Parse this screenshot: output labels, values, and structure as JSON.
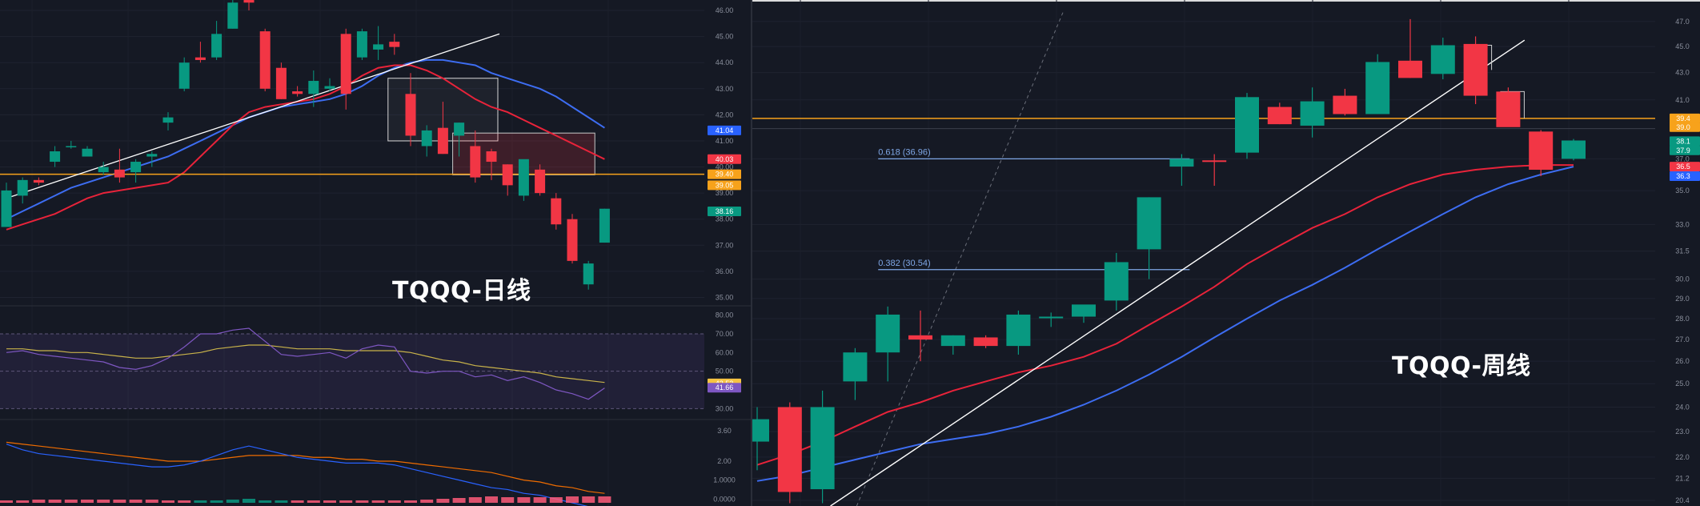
{
  "chart_data": [
    {
      "id": "daily",
      "type": "candlestick",
      "title": "TQQQ-日线",
      "y_ticks": [
        "46.00",
        "45.00",
        "44.00",
        "43.00",
        "42.00",
        "41.00",
        "40.00",
        "39.00",
        "38.00",
        "37.00",
        "36.00",
        "35.00"
      ],
      "ylim": [
        34.8,
        46.4
      ],
      "candles": [
        {
          "o": 37.7,
          "h": 39.4,
          "l": 37.7,
          "c": 39.1
        },
        {
          "o": 38.9,
          "h": 39.6,
          "l": 38.6,
          "c": 39.5
        },
        {
          "o": 39.5,
          "h": 39.6,
          "l": 39.3,
          "c": 39.4
        },
        {
          "o": 40.2,
          "h": 40.8,
          "l": 40.0,
          "c": 40.6
        },
        {
          "o": 40.8,
          "h": 41.0,
          "l": 40.7,
          "c": 40.8
        },
        {
          "o": 40.4,
          "h": 40.8,
          "l": 40.4,
          "c": 40.7
        },
        {
          "o": 39.8,
          "h": 40.2,
          "l": 39.7,
          "c": 40.0
        },
        {
          "o": 39.9,
          "h": 40.7,
          "l": 39.4,
          "c": 39.6
        },
        {
          "o": 39.8,
          "h": 40.3,
          "l": 39.4,
          "c": 40.2
        },
        {
          "o": 40.4,
          "h": 40.6,
          "l": 40.0,
          "c": 40.5
        },
        {
          "o": 41.7,
          "h": 42.1,
          "l": 41.4,
          "c": 41.9
        },
        {
          "o": 43.0,
          "h": 44.2,
          "l": 42.9,
          "c": 44.0
        },
        {
          "o": 44.2,
          "h": 44.8,
          "l": 44.0,
          "c": 44.1
        },
        {
          "o": 44.2,
          "h": 45.6,
          "l": 44.1,
          "c": 45.1
        },
        {
          "o": 45.3,
          "h": 46.4,
          "l": 45.3,
          "c": 46.3
        },
        {
          "o": 46.5,
          "h": 46.6,
          "l": 46.0,
          "c": 46.3
        },
        {
          "o": 45.2,
          "h": 45.3,
          "l": 42.9,
          "c": 43.0
        },
        {
          "o": 43.8,
          "h": 44.0,
          "l": 42.6,
          "c": 42.6
        },
        {
          "o": 42.9,
          "h": 43.1,
          "l": 42.7,
          "c": 42.8
        },
        {
          "o": 42.8,
          "h": 43.7,
          "l": 42.3,
          "c": 43.3
        },
        {
          "o": 43.0,
          "h": 43.4,
          "l": 42.9,
          "c": 43.1
        },
        {
          "o": 45.1,
          "h": 45.3,
          "l": 42.2,
          "c": 42.8
        },
        {
          "o": 44.2,
          "h": 45.3,
          "l": 44.1,
          "c": 45.2
        },
        {
          "o": 44.5,
          "h": 45.4,
          "l": 44.1,
          "c": 44.7
        },
        {
          "o": 44.8,
          "h": 45.1,
          "l": 44.3,
          "c": 44.6
        },
        {
          "o": 42.8,
          "h": 43.6,
          "l": 40.8,
          "c": 41.2
        },
        {
          "o": 40.8,
          "h": 41.6,
          "l": 40.4,
          "c": 41.4
        },
        {
          "o": 41.5,
          "h": 42.5,
          "l": 40.5,
          "c": 40.5
        },
        {
          "o": 41.2,
          "h": 41.7,
          "l": 40.4,
          "c": 41.7
        },
        {
          "o": 40.8,
          "h": 41.4,
          "l": 39.4,
          "c": 39.6
        },
        {
          "o": 40.6,
          "h": 40.7,
          "l": 39.5,
          "c": 40.2
        },
        {
          "o": 40.1,
          "h": 40.1,
          "l": 38.9,
          "c": 39.3
        },
        {
          "o": 38.9,
          "h": 40.2,
          "l": 38.7,
          "c": 40.3
        },
        {
          "o": 39.9,
          "h": 40.1,
          "l": 38.9,
          "c": 39.0
        },
        {
          "o": 38.8,
          "h": 39.0,
          "l": 37.6,
          "c": 37.8
        },
        {
          "o": 38.0,
          "h": 38.2,
          "l": 36.3,
          "c": 36.4
        },
        {
          "o": 35.5,
          "h": 36.4,
          "l": 35.3,
          "c": 36.3
        },
        {
          "o": 37.1,
          "h": 38.4,
          "l": 37.1,
          "c": 38.4
        }
      ],
      "ma_blue": [
        38.0,
        38.3,
        38.6,
        38.9,
        39.2,
        39.4,
        39.6,
        39.8,
        40.0,
        40.2,
        40.4,
        40.7,
        41.0,
        41.3,
        41.6,
        41.9,
        42.1,
        42.3,
        42.4,
        42.5,
        42.6,
        42.8,
        43.1,
        43.5,
        43.8,
        44.0,
        44.1,
        44.1,
        44.0,
        43.9,
        43.6,
        43.4,
        43.2,
        43.0,
        42.7,
        42.3,
        41.9,
        41.5
      ],
      "ma_red": [
        37.6,
        37.8,
        38.0,
        38.2,
        38.5,
        38.8,
        39.0,
        39.1,
        39.2,
        39.3,
        39.4,
        39.8,
        40.4,
        41.0,
        41.6,
        42.1,
        42.3,
        42.4,
        42.5,
        42.6,
        42.8,
        43.1,
        43.5,
        43.8,
        43.9,
        43.9,
        43.7,
        43.4,
        43.0,
        42.6,
        42.3,
        42.1,
        41.8,
        41.5,
        41.2,
        40.9,
        40.6,
        40.3
      ],
      "trendline": [
        [
          0,
          38.8
        ],
        [
          30,
          45.1
        ]
      ],
      "rect1": {
        "c0": 24,
        "c1": 30,
        "top": 43.4,
        "bottom": 41.0
      },
      "rect2": {
        "c0": 28,
        "c1": 36,
        "top": 41.3,
        "bottom": 39.7
      },
      "hline": 39.72,
      "price_tags": [
        {
          "value": 41.4,
          "label": "41.04",
          "color": "#2962ff"
        },
        {
          "value": 40.3,
          "label": "40.03",
          "color": "#f23645"
        },
        {
          "value": 39.72,
          "label": "39.40",
          "color": "#f7a21b"
        },
        {
          "value": 39.3,
          "label": "39.05",
          "color": "#f7a21b"
        },
        {
          "value": 38.3,
          "label": "38.16",
          "color": "#089981"
        }
      ],
      "rsi_ticks": [
        "80.00",
        "70.00",
        "60.00",
        "50.00",
        "40.00",
        "30.00"
      ],
      "rsi_tags": [
        {
          "label": "42.53",
          "color": "#f6c343"
        },
        {
          "label": "41.66",
          "color": "#7e57c2"
        }
      ],
      "rsi_main": [
        60,
        61,
        59,
        58,
        57,
        56,
        55,
        52,
        51,
        53,
        57,
        63,
        70,
        70,
        72,
        73,
        66,
        59,
        58,
        59,
        60,
        57,
        62,
        64,
        63,
        50,
        49,
        50,
        50,
        47,
        48,
        45,
        47,
        44,
        40,
        38,
        35,
        41
      ],
      "rsi_signal": [
        62,
        62,
        61,
        61,
        60,
        60,
        59,
        58,
        57,
        57,
        58,
        59,
        60,
        62,
        63,
        64,
        64,
        63,
        62,
        62,
        62,
        61,
        61,
        61,
        61,
        60,
        58,
        56,
        55,
        53,
        52,
        51,
        50,
        49,
        47,
        46,
        45,
        44
      ],
      "macd_ticks": [
        "3.60",
        "2.00",
        "1.0000",
        "0.0000"
      ],
      "macd_line": [
        2.9,
        2.6,
        2.4,
        2.3,
        2.2,
        2.1,
        2.0,
        1.9,
        1.8,
        1.7,
        1.7,
        1.8,
        2.0,
        2.3,
        2.6,
        2.8,
        2.6,
        2.4,
        2.2,
        2.1,
        2.0,
        1.9,
        1.9,
        1.9,
        1.8,
        1.6,
        1.4,
        1.2,
        1.0,
        0.8,
        0.6,
        0.5,
        0.3,
        0.2,
        0.0,
        -0.2,
        -0.4,
        -0.5
      ],
      "macd_signal": [
        3.0,
        2.9,
        2.8,
        2.7,
        2.6,
        2.5,
        2.4,
        2.3,
        2.2,
        2.1,
        2.0,
        2.0,
        2.0,
        2.1,
        2.2,
        2.3,
        2.3,
        2.3,
        2.3,
        2.2,
        2.2,
        2.1,
        2.1,
        2.0,
        2.0,
        1.9,
        1.8,
        1.7,
        1.6,
        1.5,
        1.4,
        1.2,
        1.0,
        0.9,
        0.7,
        0.6,
        0.4,
        0.3
      ]
    },
    {
      "id": "weekly",
      "type": "candlestick",
      "title": "TQQQ-周线",
      "scale": "log",
      "y_ticks": [
        "47.0",
        "45.0",
        "43.0",
        "41.0",
        "39.0",
        "37.0",
        "35.0",
        "33.0",
        "31.5",
        "30.0",
        "29.0",
        "28.0",
        "27.0",
        "26.0",
        "25.0",
        "24.0",
        "23.0",
        "22.0",
        "21.2",
        "20.4"
      ],
      "ylim": [
        20.2,
        48.8
      ],
      "candles": [
        {
          "o": 22.6,
          "h": 24.0,
          "l": 21.5,
          "c": 23.5
        },
        {
          "o": 24.0,
          "h": 24.2,
          "l": 20.3,
          "c": 20.7
        },
        {
          "o": 20.8,
          "h": 24.7,
          "l": 20.3,
          "c": 24.0
        },
        {
          "o": 25.1,
          "h": 26.6,
          "l": 24.3,
          "c": 26.4
        },
        {
          "o": 26.4,
          "h": 28.6,
          "l": 25.1,
          "c": 28.2
        },
        {
          "o": 27.2,
          "h": 28.4,
          "l": 26.0,
          "c": 27.0
        },
        {
          "o": 26.7,
          "h": 27.2,
          "l": 26.3,
          "c": 27.2
        },
        {
          "o": 27.1,
          "h": 27.2,
          "l": 26.6,
          "c": 26.7
        },
        {
          "o": 26.7,
          "h": 28.4,
          "l": 26.3,
          "c": 28.2
        },
        {
          "o": 28.1,
          "h": 28.3,
          "l": 27.6,
          "c": 28.1
        },
        {
          "o": 28.1,
          "h": 28.6,
          "l": 27.8,
          "c": 28.7
        },
        {
          "o": 28.9,
          "h": 31.4,
          "l": 28.4,
          "c": 30.9
        },
        {
          "o": 31.6,
          "h": 34.6,
          "l": 30.0,
          "c": 34.6
        },
        {
          "o": 36.5,
          "h": 37.3,
          "l": 35.3,
          "c": 37.0
        },
        {
          "o": 36.9,
          "h": 37.3,
          "l": 35.3,
          "c": 36.8
        },
        {
          "o": 37.4,
          "h": 41.5,
          "l": 37.0,
          "c": 41.2
        },
        {
          "o": 40.5,
          "h": 40.8,
          "l": 39.3,
          "c": 39.3
        },
        {
          "o": 39.2,
          "h": 41.9,
          "l": 38.4,
          "c": 40.9
        },
        {
          "o": 41.3,
          "h": 41.8,
          "l": 39.9,
          "c": 40.0
        },
        {
          "o": 40.0,
          "h": 44.4,
          "l": 40.0,
          "c": 43.8
        },
        {
          "o": 43.9,
          "h": 47.2,
          "l": 42.6,
          "c": 42.6
        },
        {
          "o": 42.9,
          "h": 45.7,
          "l": 42.5,
          "c": 45.1
        },
        {
          "o": 45.2,
          "h": 45.8,
          "l": 40.7,
          "c": 41.3
        },
        {
          "o": 41.6,
          "h": 41.9,
          "l": 39.2,
          "c": 39.1
        },
        {
          "o": 38.8,
          "h": 38.9,
          "l": 35.9,
          "c": 36.3
        },
        {
          "o": 37.0,
          "h": 38.3,
          "l": 36.9,
          "c": 38.2
        }
      ],
      "ma_blue": [
        21.1,
        21.3,
        21.6,
        21.9,
        22.2,
        22.5,
        22.7,
        22.9,
        23.2,
        23.6,
        24.1,
        24.7,
        25.4,
        26.2,
        27.1,
        28.0,
        28.9,
        29.7,
        30.6,
        31.6,
        32.6,
        33.6,
        34.6,
        35.4,
        36.0,
        36.5
      ],
      "ma_red": [
        21.7,
        22.1,
        22.6,
        23.2,
        23.8,
        24.2,
        24.7,
        25.1,
        25.6,
        25.9,
        26.3,
        26.9,
        27.8,
        28.7,
        29.7,
        30.9,
        31.9,
        33.0,
        33.9,
        35.1,
        36.4,
        37.7,
        38.9,
        40.2,
        40.7,
        41.3
      ],
      "ma_red_fix": [
        21.7,
        22.1,
        22.6,
        23.2,
        23.8,
        24.2,
        24.7,
        25.1,
        25.5,
        25.8,
        26.2,
        26.8,
        27.7,
        28.6,
        29.6,
        30.8,
        31.8,
        32.8,
        33.6,
        34.6,
        35.4,
        36.0,
        36.3,
        36.5,
        36.6,
        36.6
      ],
      "trendline": [
        [
          2,
          20.2
        ],
        [
          23.5,
          45.5
        ]
      ],
      "fib_lines": [
        {
          "label": "0.618 (36.96)",
          "value": 37.0,
          "c0": 4,
          "c1": 13
        },
        {
          "label": "0.382 (30.54)",
          "value": 30.5,
          "c0": 4,
          "c1": 13
        }
      ],
      "hline": 39.7,
      "hline_gray": 39.0,
      "price_tags": [
        {
          "value": 39.7,
          "label": "39.4",
          "color": "#f7a21b"
        },
        {
          "value": 39.1,
          "label": "39.0",
          "color": "#f7a21b"
        },
        {
          "value": 38.15,
          "label": "38.1",
          "color": "#089981"
        },
        {
          "value": 37.55,
          "label": "37.9",
          "color": "#089981"
        },
        {
          "value": 36.5,
          "label": "36.5",
          "color": "#f23645"
        },
        {
          "value": 35.9,
          "label": "36.3",
          "color": "#2962ff"
        }
      ]
    }
  ]
}
